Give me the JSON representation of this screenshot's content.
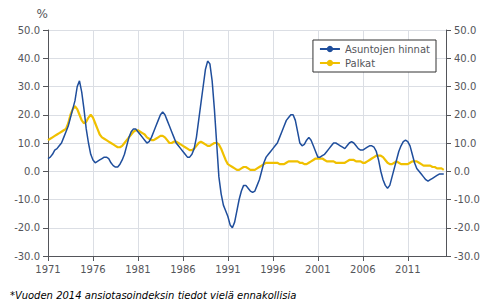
{
  "chart_data": {
    "type": "line",
    "ylabel": "%",
    "annotations": [
      "*Vuoden 2014 ansiotasoindeksin tiedot vielä ennakollisia"
    ],
    "legend": "upper right",
    "grid": true,
    "xlim": [
      1971,
      2015.25
    ],
    "xticks": [
      1971,
      1976,
      1981,
      1986,
      1991,
      1996,
      2001,
      2006,
      2011
    ],
    "ylim": [
      -30.0,
      50.0
    ],
    "yticks": [
      {
        "value": -30.0,
        "label": "-30.0"
      },
      {
        "value": -20.0,
        "label": "-20.0"
      },
      {
        "value": -10.0,
        "label": "-10.0"
      },
      {
        "value": 0.0,
        "label": "0.0"
      },
      {
        "value": 10.0,
        "label": "10.0"
      },
      {
        "value": 20.0,
        "label": "20.0"
      },
      {
        "value": 30.0,
        "label": "30.0"
      },
      {
        "value": 40.0,
        "label": "40.0"
      },
      {
        "value": 50.0,
        "label": "50.0"
      }
    ],
    "y2lim": [
      -30.0,
      50.0
    ],
    "y2ticks": [
      {
        "value": -30.0,
        "label": "-30.0"
      },
      {
        "value": -20.0,
        "label": "-20.0"
      },
      {
        "value": -10.0,
        "label": "-10.0"
      },
      {
        "value": 0.0,
        "label": "0.0"
      },
      {
        "value": 10.0,
        "label": "10.0"
      },
      {
        "value": 20.0,
        "label": "20.0"
      },
      {
        "value": 30.0,
        "label": "30.0"
      },
      {
        "value": 40.0,
        "label": "40.0"
      },
      {
        "value": 50.0,
        "label": "50.0"
      }
    ],
    "x": [
      1971.0,
      1971.25,
      1971.5,
      1971.75,
      1972.0,
      1972.25,
      1972.5,
      1972.75,
      1973.0,
      1973.25,
      1973.5,
      1973.75,
      1974.0,
      1974.25,
      1974.5,
      1974.75,
      1975.0,
      1975.25,
      1975.5,
      1975.75,
      1976.0,
      1976.25,
      1976.5,
      1976.75,
      1977.0,
      1977.25,
      1977.5,
      1977.75,
      1978.0,
      1978.25,
      1978.5,
      1978.75,
      1979.0,
      1979.25,
      1979.5,
      1979.75,
      1980.0,
      1980.25,
      1980.5,
      1980.75,
      1981.0,
      1981.25,
      1981.5,
      1981.75,
      1982.0,
      1982.25,
      1982.5,
      1982.75,
      1983.0,
      1983.25,
      1983.5,
      1983.75,
      1984.0,
      1984.25,
      1984.5,
      1984.75,
      1985.0,
      1985.25,
      1985.5,
      1985.75,
      1986.0,
      1986.25,
      1986.5,
      1986.75,
      1987.0,
      1987.25,
      1987.5,
      1987.75,
      1988.0,
      1988.25,
      1988.5,
      1988.75,
      1989.0,
      1989.25,
      1989.5,
      1989.75,
      1990.0,
      1990.25,
      1990.5,
      1990.75,
      1991.0,
      1991.25,
      1991.5,
      1991.75,
      1992.0,
      1992.25,
      1992.5,
      1992.75,
      1993.0,
      1993.25,
      1993.5,
      1993.75,
      1994.0,
      1994.25,
      1994.5,
      1994.75,
      1995.0,
      1995.25,
      1995.5,
      1995.75,
      1996.0,
      1996.25,
      1996.5,
      1996.75,
      1997.0,
      1997.25,
      1997.5,
      1997.75,
      1998.0,
      1998.25,
      1998.5,
      1998.75,
      1999.0,
      1999.25,
      1999.5,
      1999.75,
      2000.0,
      2000.25,
      2000.5,
      2000.75,
      2001.0,
      2001.25,
      2001.5,
      2001.75,
      2002.0,
      2002.25,
      2002.5,
      2002.75,
      2003.0,
      2003.25,
      2003.5,
      2003.75,
      2004.0,
      2004.25,
      2004.5,
      2004.75,
      2005.0,
      2005.25,
      2005.5,
      2005.75,
      2006.0,
      2006.25,
      2006.5,
      2006.75,
      2007.0,
      2007.25,
      2007.5,
      2007.75,
      2008.0,
      2008.25,
      2008.5,
      2008.75,
      2009.0,
      2009.25,
      2009.5,
      2009.75,
      2010.0,
      2010.25,
      2010.5,
      2010.75,
      2011.0,
      2011.25,
      2011.5,
      2011.75,
      2012.0,
      2012.25,
      2012.5,
      2012.75,
      2013.0,
      2013.25,
      2013.5,
      2013.75,
      2014.0,
      2014.25,
      2014.5,
      2014.75,
      2015.0
    ],
    "series": [
      {
        "name": "Asuntojen hinnat",
        "color": "#1f4e9c",
        "values": [
          4.5,
          5.0,
          6.0,
          7.5,
          8.0,
          9.0,
          10.0,
          12.0,
          14.0,
          16.0,
          19.0,
          22.0,
          25.0,
          30.0,
          32.0,
          28.0,
          22.0,
          15.0,
          10.0,
          6.0,
          4.0,
          3.0,
          3.5,
          4.0,
          4.5,
          5.0,
          5.0,
          4.5,
          3.0,
          2.0,
          1.5,
          1.5,
          2.5,
          4.0,
          6.0,
          9.0,
          12.0,
          14.0,
          15.0,
          15.0,
          14.0,
          13.0,
          12.0,
          11.0,
          10.0,
          10.5,
          12.0,
          14.0,
          16.0,
          18.0,
          20.0,
          21.0,
          20.0,
          18.0,
          16.0,
          14.0,
          12.0,
          10.0,
          9.0,
          8.0,
          7.0,
          6.0,
          5.0,
          5.0,
          6.0,
          8.0,
          12.0,
          18.0,
          24.0,
          30.0,
          36.0,
          39.0,
          38.0,
          32.0,
          22.0,
          10.0,
          -2.0,
          -8.0,
          -12.0,
          -14.0,
          -16.0,
          -19.0,
          -20.0,
          -18.0,
          -14.0,
          -10.0,
          -7.0,
          -5.0,
          -5.0,
          -6.0,
          -7.0,
          -7.5,
          -7.0,
          -5.0,
          -3.0,
          0.0,
          3.0,
          5.0,
          6.0,
          7.0,
          8.0,
          9.0,
          10.0,
          12.0,
          14.0,
          16.0,
          18.0,
          19.0,
          20.0,
          20.0,
          18.0,
          14.0,
          10.0,
          9.0,
          9.5,
          11.0,
          12.0,
          11.0,
          9.0,
          7.0,
          5.0,
          5.0,
          5.5,
          6.0,
          7.0,
          8.0,
          9.0,
          10.0,
          10.0,
          9.5,
          9.0,
          8.5,
          8.0,
          9.0,
          10.0,
          10.5,
          10.0,
          9.0,
          8.0,
          7.5,
          7.5,
          8.0,
          8.5,
          9.0,
          9.0,
          8.5,
          7.0,
          4.0,
          0.0,
          -3.0,
          -5.0,
          -6.0,
          -5.0,
          -2.0,
          1.0,
          4.0,
          7.0,
          9.0,
          10.5,
          11.0,
          10.5,
          9.0,
          6.0,
          3.0,
          1.0,
          0.0,
          -1.0,
          -2.0,
          -3.0,
          -3.5,
          -3.0,
          -2.5,
          -2.0,
          -1.5,
          -1.0,
          -1.0,
          -1.0
        ]
      },
      {
        "name": "Palkat",
        "color": "#f0c000",
        "values": [
          11.0,
          11.5,
          12.0,
          12.5,
          13.0,
          13.5,
          14.0,
          14.5,
          15.0,
          17.0,
          20.0,
          22.0,
          23.0,
          22.0,
          20.0,
          18.0,
          17.0,
          17.5,
          19.0,
          20.0,
          19.0,
          17.0,
          15.0,
          13.0,
          12.0,
          11.5,
          11.0,
          10.5,
          10.0,
          9.5,
          9.0,
          8.5,
          8.5,
          9.0,
          10.0,
          11.0,
          12.0,
          13.0,
          14.0,
          14.5,
          14.5,
          14.0,
          13.5,
          13.0,
          12.0,
          11.5,
          11.0,
          11.0,
          11.5,
          12.0,
          12.5,
          12.5,
          12.0,
          11.0,
          10.0,
          10.0,
          10.5,
          10.5,
          10.0,
          9.5,
          9.0,
          8.5,
          8.0,
          7.5,
          7.5,
          8.0,
          9.0,
          10.0,
          10.5,
          10.0,
          9.5,
          9.0,
          9.0,
          9.5,
          10.0,
          10.0,
          9.5,
          8.0,
          6.0,
          4.0,
          2.5,
          2.0,
          1.5,
          1.0,
          0.5,
          0.5,
          1.0,
          1.5,
          1.5,
          1.0,
          0.5,
          0.5,
          0.5,
          1.0,
          1.5,
          2.0,
          2.5,
          3.0,
          3.0,
          3.0,
          3.0,
          3.0,
          3.0,
          2.5,
          2.5,
          2.5,
          3.0,
          3.5,
          3.5,
          3.5,
          3.5,
          3.5,
          3.0,
          3.0,
          2.5,
          2.5,
          3.0,
          3.5,
          4.0,
          4.5,
          4.5,
          4.5,
          4.5,
          4.0,
          3.5,
          3.5,
          3.5,
          3.5,
          3.0,
          3.0,
          3.0,
          3.0,
          3.0,
          3.5,
          4.0,
          4.0,
          4.0,
          3.5,
          3.5,
          3.5,
          3.0,
          3.0,
          3.5,
          4.0,
          4.5,
          5.0,
          5.5,
          5.5,
          5.5,
          5.0,
          4.0,
          3.0,
          2.5,
          2.5,
          3.0,
          3.5,
          3.0,
          2.5,
          2.5,
          2.5,
          2.5,
          3.0,
          3.5,
          3.5,
          3.5,
          3.0,
          2.5,
          2.0,
          2.0,
          2.0,
          2.0,
          1.5,
          1.5,
          1.0,
          1.0,
          1.0,
          0.5
        ]
      }
    ]
  }
}
